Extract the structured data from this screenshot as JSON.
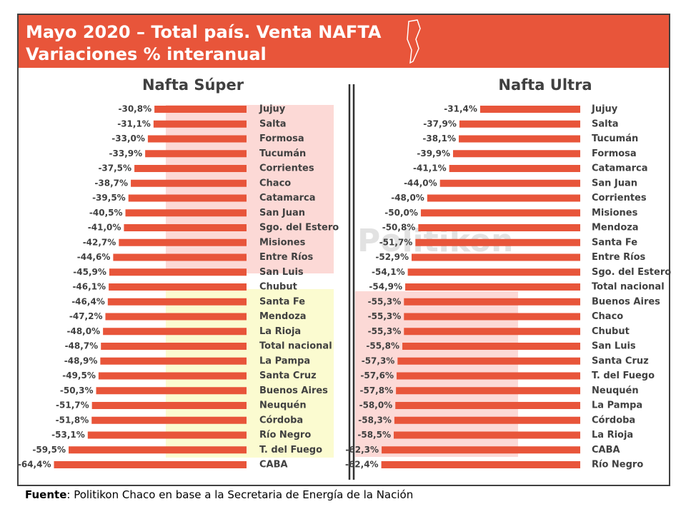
{
  "header": {
    "title_line1": "Mayo 2020 – Total país. Venta NAFTA",
    "title_line2": "Variaciones % interanual"
  },
  "watermark": "Politikon",
  "chart_data": [
    {
      "type": "bar",
      "orientation": "horizontal",
      "title": "Nafta Súper",
      "color": "#e8553a",
      "xlim": [
        -65,
        0
      ],
      "categories": [
        "Jujuy",
        "Salta",
        "Formosa",
        "Tucumán",
        "Corrientes",
        "Chaco",
        "Catamarca",
        "San Juan",
        "Sgo. del Estero",
        "Misiones",
        "Entre Ríos",
        "San Luis",
        "Chubut",
        "Santa Fe",
        "Mendoza",
        "La Rioja",
        "Total nacional",
        "La Pampa",
        "Santa Cruz",
        "Buenos Aires",
        "Neuquén",
        "Córdoba",
        "Río Negro",
        "T. del Fuego",
        "CABA"
      ],
      "values": [
        -30.8,
        -31.1,
        -33.0,
        -33.9,
        -37.5,
        -38.7,
        -39.5,
        -40.5,
        -41.0,
        -42.7,
        -44.6,
        -45.9,
        -46.1,
        -46.4,
        -47.2,
        -48.0,
        -48.7,
        -48.9,
        -49.5,
        -50.3,
        -51.7,
        -51.8,
        -53.1,
        -59.5,
        -64.4
      ],
      "value_labels": [
        "-30,8%",
        "-31,1%",
        "-33,0%",
        "-33,9%",
        "-37,5%",
        "-38,7%",
        "-39,5%",
        "-40,5%",
        "-41,0%",
        "-42,7%",
        "-44,6%",
        "-45,9%",
        "-46,1%",
        "-46,4%",
        "-47,2%",
        "-48,0%",
        "-48,7%",
        "-48,9%",
        "-49,5%",
        "-50,3%",
        "-51,7%",
        "-51,8%",
        "-53,1%",
        "-59,5%",
        "-64,4%"
      ]
    },
    {
      "type": "bar",
      "orientation": "horizontal",
      "title": "Nafta Ultra",
      "color": "#e8553a",
      "xlim": [
        -65,
        0
      ],
      "categories": [
        "Jujuy",
        "Salta",
        "Tucumán",
        "Formosa",
        "Catamarca",
        "San Juan",
        "Corrientes",
        "Misiones",
        "Mendoza",
        "Santa Fe",
        "Entre Ríos",
        "Sgo. del Estero",
        "Total nacional",
        "Buenos Aires",
        "Chaco",
        "Chubut",
        "San Luis",
        "Santa Cruz",
        "T. del Fuego",
        "Neuquén",
        "La Pampa",
        "Córdoba",
        "La Rioja",
        "CABA",
        "Río Negro"
      ],
      "values": [
        -31.4,
        -37.9,
        -38.1,
        -39.9,
        -41.1,
        -44.0,
        -48.0,
        -50.0,
        -50.8,
        -51.7,
        -52.9,
        -54.1,
        -54.9,
        -55.3,
        -55.3,
        -55.3,
        -55.8,
        -57.3,
        -57.6,
        -57.8,
        -58.0,
        -58.3,
        -58.5,
        -62.3,
        -62.4
      ],
      "value_labels": [
        "-31,4%",
        "-37,9%",
        "-38,1%",
        "-39,9%",
        "-41,1%",
        "-44,0%",
        "-48,0%",
        "-50,0%",
        "-50,8%",
        "-51,7%",
        "-52,9%",
        "-54,1%",
        "-54,9%",
        "-55,3%",
        "-55,3%",
        "-55,3%",
        "-55,8%",
        "-57,3%",
        "-57,6%",
        "-57,8%",
        "-58,0%",
        "-58,3%",
        "-58,5%",
        "-62,3%",
        "-62,4%"
      ]
    }
  ],
  "source": {
    "label": "Fuente",
    "text": ": Politikon Chaco en base a la Secretaria de Energía de la Nación"
  }
}
